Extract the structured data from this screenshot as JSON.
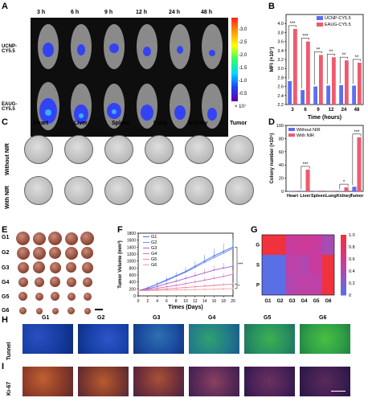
{
  "panels": {
    "A": "A",
    "B": "B",
    "C": "C",
    "D": "D",
    "E": "E",
    "F": "F",
    "G": "G",
    "H": "H",
    "I": "I"
  },
  "panelA": {
    "times": [
      "3 h",
      "6 h",
      "9 h",
      "12 h",
      "24 h",
      "48 h"
    ],
    "rows": [
      "UCNP-CY5.5",
      "EAUG-CY5.5"
    ],
    "colorbar_ticks": [
      "-3.0",
      "-2.5",
      "-2.0",
      "-1.5",
      "-1.0",
      "-0.5"
    ],
    "colorbar_unit": "× 10⁷"
  },
  "panelB": {
    "chart_data": {
      "type": "bar",
      "categories": [
        "3",
        "6",
        "9",
        "12",
        "24",
        "48"
      ],
      "series": [
        {
          "name": "UCNP-CY5.5",
          "values": [
            2.72,
            2.52,
            2.6,
            2.62,
            2.63,
            2.62
          ],
          "color": "#5a6ff0"
        },
        {
          "name": "EAUG-CY5.5",
          "values": [
            3.88,
            3.6,
            3.3,
            3.25,
            3.18,
            3.13
          ],
          "color": "#f05a6e"
        }
      ],
      "significance": [
        "***",
        "***",
        "**",
        "**",
        "**",
        "**"
      ],
      "xlabel": "Time (hours)",
      "ylabel": "MFI (×10⁷)",
      "ylim": [
        2.2,
        4.2
      ],
      "yticks": [
        "2.2",
        "2.4",
        "2.6",
        "2.8",
        "3.0",
        "3.2",
        "3.4",
        "3.6",
        "3.8",
        "4.0"
      ]
    }
  },
  "panelC": {
    "columns": [
      "Heart",
      "Liver",
      "Spleen",
      "Lung",
      "Kidney",
      "Tumor"
    ],
    "rows": [
      "Without NIR",
      "With NIR"
    ]
  },
  "panelD": {
    "chart_data": {
      "type": "bar",
      "categories": [
        "Heart",
        "Liver",
        "Spleen",
        "Lung",
        "Kidney",
        "Tumor"
      ],
      "series": [
        {
          "name": "Without NIR",
          "values": [
            0.5,
            0.8,
            0.3,
            0.3,
            0.6,
            7
          ],
          "color": "#5a6ff0"
        },
        {
          "name": "With NIR",
          "values": [
            0.8,
            33,
            1,
            0.8,
            6,
            82
          ],
          "color": "#f05a6e"
        }
      ],
      "significance": [
        "",
        "***",
        "",
        "",
        "*",
        "***"
      ],
      "ylabel": "Colony number (×10⁵)",
      "ylim": [
        0,
        100
      ],
      "yticks": [
        "0",
        "20",
        "40",
        "60",
        "80",
        "100"
      ]
    }
  },
  "panelE": {
    "groups": [
      "G1",
      "G2",
      "G3",
      "G4",
      "G5",
      "G6"
    ]
  },
  "panelF": {
    "chart_data": {
      "type": "line",
      "x": [
        0,
        2,
        4,
        6,
        8,
        10,
        12,
        14,
        16,
        18,
        20
      ],
      "series": [
        {
          "name": "G1",
          "values": [
            150,
            230,
            340,
            460,
            580,
            700,
            850,
            1000,
            1150,
            1280,
            1400
          ],
          "color": "#4a70d8"
        },
        {
          "name": "G2",
          "values": [
            150,
            220,
            330,
            440,
            560,
            680,
            820,
            960,
            1100,
            1230,
            1360
          ],
          "color": "#6b8cff"
        },
        {
          "name": "G3",
          "values": [
            150,
            200,
            270,
            350,
            420,
            500,
            580,
            660,
            740,
            800,
            850
          ],
          "color": "#a060d0"
        },
        {
          "name": "G4",
          "values": [
            150,
            180,
            220,
            260,
            300,
            350,
            400,
            450,
            500,
            560,
            620
          ],
          "color": "#d070c0"
        },
        {
          "name": "G5",
          "values": [
            150,
            160,
            180,
            200,
            220,
            240,
            260,
            280,
            300,
            320,
            340
          ],
          "color": "#f080a0"
        },
        {
          "name": "G6",
          "values": [
            150,
            150,
            160,
            165,
            170,
            175,
            180,
            185,
            190,
            200,
            210
          ],
          "color": "#f0a0a0"
        }
      ],
      "xlabel": "Times (Days)",
      "ylabel": "Tumor Volume (mm³)",
      "xticks": [
        "0",
        "2",
        "4",
        "6",
        "8",
        "10",
        "12",
        "14",
        "16",
        "18",
        "20"
      ],
      "yticks": [
        "0",
        "200",
        "400",
        "600",
        "800",
        "1000",
        "1200",
        "1400",
        "1600",
        "1800"
      ],
      "ylim": [
        0,
        1800
      ],
      "significance": [
        "***",
        "*"
      ]
    }
  },
  "panelG": {
    "chart_data": {
      "type": "heatmap",
      "columns": [
        "G1",
        "G2",
        "G3",
        "G4",
        "G5",
        "G6"
      ],
      "rows": [
        "G",
        "S",
        "P"
      ],
      "values": [
        [
          1.0,
          1.0,
          0.5,
          0.55,
          0.5,
          0.35
        ],
        [
          0.0,
          0.0,
          0.45,
          0.4,
          0.5,
          1.0
        ],
        [
          0.0,
          0.0,
          0.4,
          0.45,
          0.45,
          1.0
        ]
      ],
      "colorbar_ticks": [
        "0",
        "0.2",
        "0.4",
        "0.6",
        "0.8",
        "1.0"
      ]
    }
  },
  "panelH": {
    "row_label": "Tunnel",
    "columns": [
      "G1",
      "G2",
      "G3",
      "G4",
      "G5",
      "G6"
    ]
  },
  "panelI": {
    "row_label": "Ki-67"
  }
}
